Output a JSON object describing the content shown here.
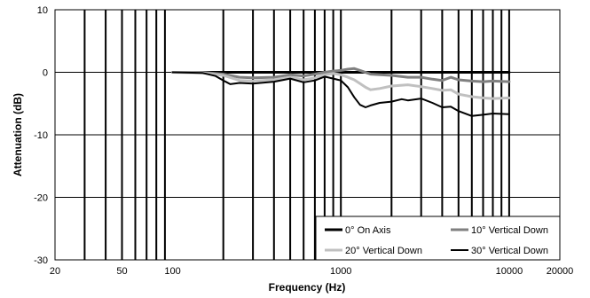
{
  "chart_data": {
    "type": "line",
    "xlabel": "Frequency (Hz)",
    "ylabel": "Attenuation (dB)",
    "xscale": "log",
    "xlim": [
      20,
      20000
    ],
    "ylim": [
      -30,
      10
    ],
    "grid": "on",
    "legend_position": "bottom-right",
    "xticks": [
      {
        "value": 20,
        "label": "20"
      },
      {
        "value": 50,
        "label": "50"
      },
      {
        "value": 100,
        "label": "100"
      },
      {
        "value": 1000,
        "label": "1000"
      },
      {
        "value": 10000,
        "label": "10000"
      },
      {
        "value": 20000,
        "label": "20000"
      }
    ],
    "yticks": [
      {
        "value": 10,
        "label": "10"
      },
      {
        "value": 0,
        "label": "0"
      },
      {
        "value": -10,
        "label": "-10"
      },
      {
        "value": -20,
        "label": "-20"
      },
      {
        "value": -30,
        "label": "-30"
      }
    ],
    "vertical_gridlines": [
      30,
      40,
      50,
      60,
      70,
      80,
      90,
      200,
      300,
      400,
      500,
      600,
      700,
      800,
      900,
      1000,
      2000,
      3000,
      4000,
      5000,
      6000,
      7000,
      8000,
      9000,
      10000
    ],
    "series": [
      {
        "name": "0° On Axis",
        "color": "#000000",
        "width": 3,
        "points": [
          [
            100,
            0
          ],
          [
            200,
            0
          ],
          [
            500,
            0
          ],
          [
            1000,
            0
          ],
          [
            2000,
            0
          ],
          [
            5000,
            0
          ],
          [
            10000,
            0
          ]
        ]
      },
      {
        "name": "10° Vertical Down",
        "color": "#808080",
        "width": 3,
        "points": [
          [
            100,
            0
          ],
          [
            150,
            0
          ],
          [
            200,
            -0.3
          ],
          [
            250,
            -0.8
          ],
          [
            300,
            -0.9
          ],
          [
            400,
            -0.8
          ],
          [
            500,
            -0.4
          ],
          [
            600,
            -0.6
          ],
          [
            700,
            -0.3
          ],
          [
            800,
            0
          ],
          [
            900,
            0.2
          ],
          [
            1000,
            0.3
          ],
          [
            1100,
            0.5
          ],
          [
            1200,
            0.6
          ],
          [
            1300,
            0.3
          ],
          [
            1500,
            -0.3
          ],
          [
            2000,
            -0.5
          ],
          [
            2500,
            -0.8
          ],
          [
            3000,
            -0.8
          ],
          [
            3500,
            -1.1
          ],
          [
            4000,
            -1.3
          ],
          [
            4500,
            -0.8
          ],
          [
            5000,
            -1.2
          ],
          [
            6000,
            -1.4
          ],
          [
            7000,
            -1.5
          ],
          [
            8000,
            -1.4
          ],
          [
            10000,
            -1.5
          ]
        ]
      },
      {
        "name": "20° Vertical Down",
        "color": "#c0c0c0",
        "width": 3,
        "points": [
          [
            100,
            0
          ],
          [
            150,
            -0.1
          ],
          [
            200,
            -0.5
          ],
          [
            250,
            -1.3
          ],
          [
            300,
            -1.4
          ],
          [
            400,
            -1.2
          ],
          [
            500,
            -0.8
          ],
          [
            600,
            -1.2
          ],
          [
            700,
            -0.9
          ],
          [
            800,
            -0.4
          ],
          [
            900,
            -0.2
          ],
          [
            1000,
            -0.4
          ],
          [
            1100,
            -0.8
          ],
          [
            1200,
            -1.2
          ],
          [
            1300,
            -1.8
          ],
          [
            1400,
            -2.4
          ],
          [
            1500,
            -2.8
          ],
          [
            1700,
            -2.6
          ],
          [
            2000,
            -2.2
          ],
          [
            2500,
            -2.0
          ],
          [
            3000,
            -2.3
          ],
          [
            3500,
            -2.6
          ],
          [
            4000,
            -2.9
          ],
          [
            4500,
            -2.8
          ],
          [
            5000,
            -3.5
          ],
          [
            6000,
            -3.9
          ],
          [
            7000,
            -4.1
          ],
          [
            8000,
            -4.2
          ],
          [
            10000,
            -4.1
          ]
        ]
      },
      {
        "name": "30° Vertical Down",
        "color": "#000000",
        "width": 2,
        "points": [
          [
            100,
            0
          ],
          [
            150,
            -0.1
          ],
          [
            180,
            -0.6
          ],
          [
            200,
            -1.3
          ],
          [
            220,
            -1.9
          ],
          [
            250,
            -1.7
          ],
          [
            300,
            -1.8
          ],
          [
            400,
            -1.5
          ],
          [
            500,
            -1.0
          ],
          [
            600,
            -1.6
          ],
          [
            700,
            -1.3
          ],
          [
            800,
            -0.7
          ],
          [
            900,
            -1.0
          ],
          [
            1000,
            -1.3
          ],
          [
            1100,
            -2.4
          ],
          [
            1200,
            -4.0
          ],
          [
            1300,
            -5.2
          ],
          [
            1400,
            -5.6
          ],
          [
            1500,
            -5.3
          ],
          [
            1700,
            -4.9
          ],
          [
            2000,
            -4.7
          ],
          [
            2300,
            -4.3
          ],
          [
            2500,
            -4.5
          ],
          [
            3000,
            -4.2
          ],
          [
            3500,
            -4.9
          ],
          [
            4000,
            -5.6
          ],
          [
            4500,
            -5.5
          ],
          [
            5000,
            -6.2
          ],
          [
            6000,
            -7.0
          ],
          [
            7000,
            -6.8
          ],
          [
            8000,
            -6.6
          ],
          [
            10000,
            -6.7
          ]
        ]
      }
    ],
    "legend": [
      {
        "label": "0° On Axis",
        "series": 0
      },
      {
        "label": "10° Vertical Down",
        "series": 1
      },
      {
        "label": "20° Vertical Down",
        "series": 2
      },
      {
        "label": "30° Vertical Down",
        "series": 3
      }
    ]
  }
}
